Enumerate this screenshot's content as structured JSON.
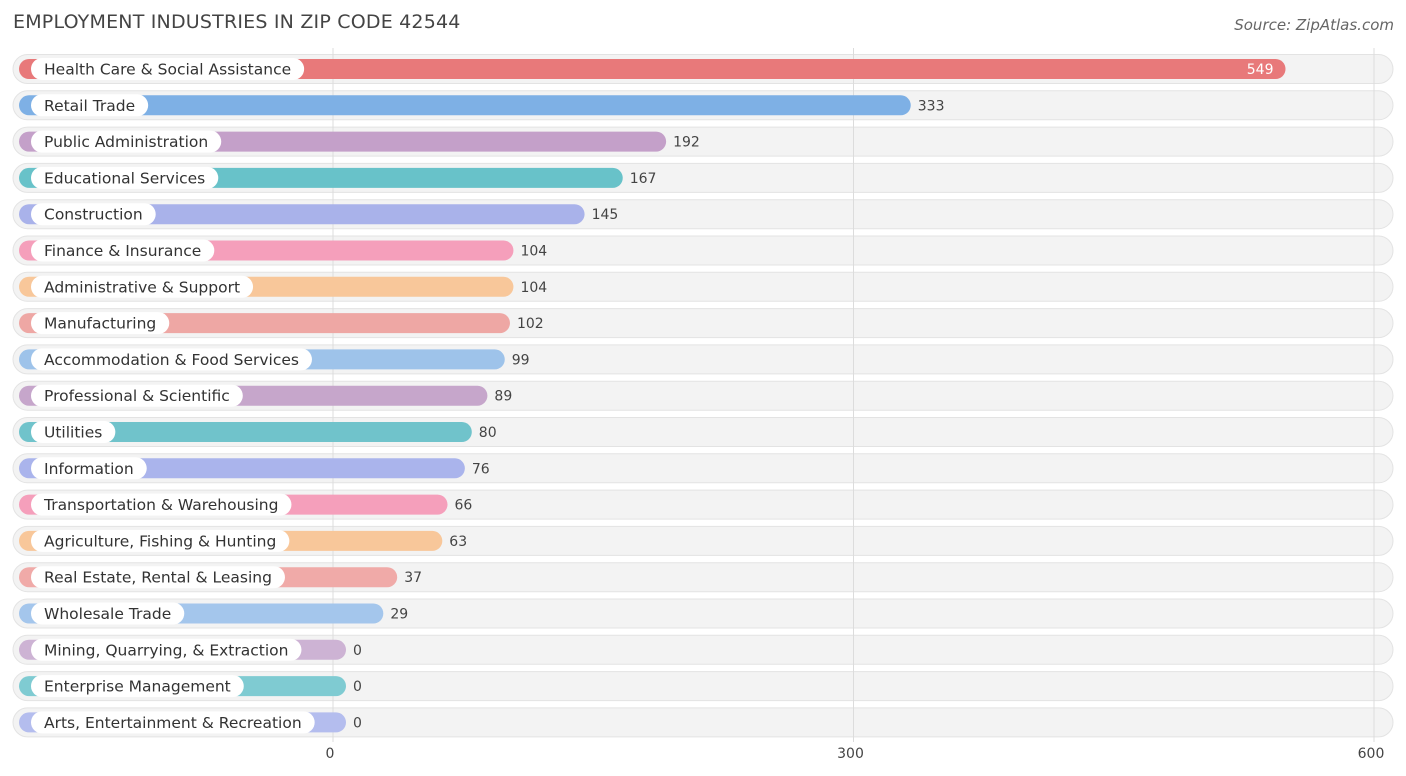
{
  "header": {
    "title": "EMPLOYMENT INDUSTRIES IN ZIP CODE 42544",
    "source": "Source: ZipAtlas.com"
  },
  "chart_data": {
    "type": "bar",
    "orientation": "horizontal",
    "title": "EMPLOYMENT INDUSTRIES IN ZIP CODE 42544",
    "xlabel": "",
    "ylabel": "",
    "xlim": [
      0,
      600
    ],
    "xticks": [
      0,
      300,
      600
    ],
    "grid": true,
    "categories": [
      "Health Care & Social Assistance",
      "Retail Trade",
      "Public Administration",
      "Educational Services",
      "Construction",
      "Finance & Insurance",
      "Administrative & Support",
      "Manufacturing",
      "Accommodation & Food Services",
      "Professional & Scientific",
      "Utilities",
      "Information",
      "Transportation & Warehousing",
      "Agriculture, Fishing & Hunting",
      "Real Estate, Rental & Leasing",
      "Wholesale Trade",
      "Mining, Quarrying, & Extraction",
      "Enterprise Management",
      "Arts, Entertainment & Recreation"
    ],
    "values": [
      549,
      333,
      192,
      167,
      145,
      104,
      104,
      102,
      99,
      89,
      80,
      76,
      66,
      63,
      37,
      29,
      0,
      0,
      0
    ],
    "colors": [
      "#e8797a",
      "#7eb0e5",
      "#c4a0c9",
      "#68c2c9",
      "#a9b2ea",
      "#f59fbb",
      "#f8c79a",
      "#eea7a4",
      "#9ec3ea",
      "#c6a6cb",
      "#70c3cb",
      "#aab4ec",
      "#f59fbb",
      "#f8c79a",
      "#f0aaa8",
      "#a4c6ec",
      "#cdb3d4",
      "#7fcbd2",
      "#b4bdee"
    ]
  }
}
